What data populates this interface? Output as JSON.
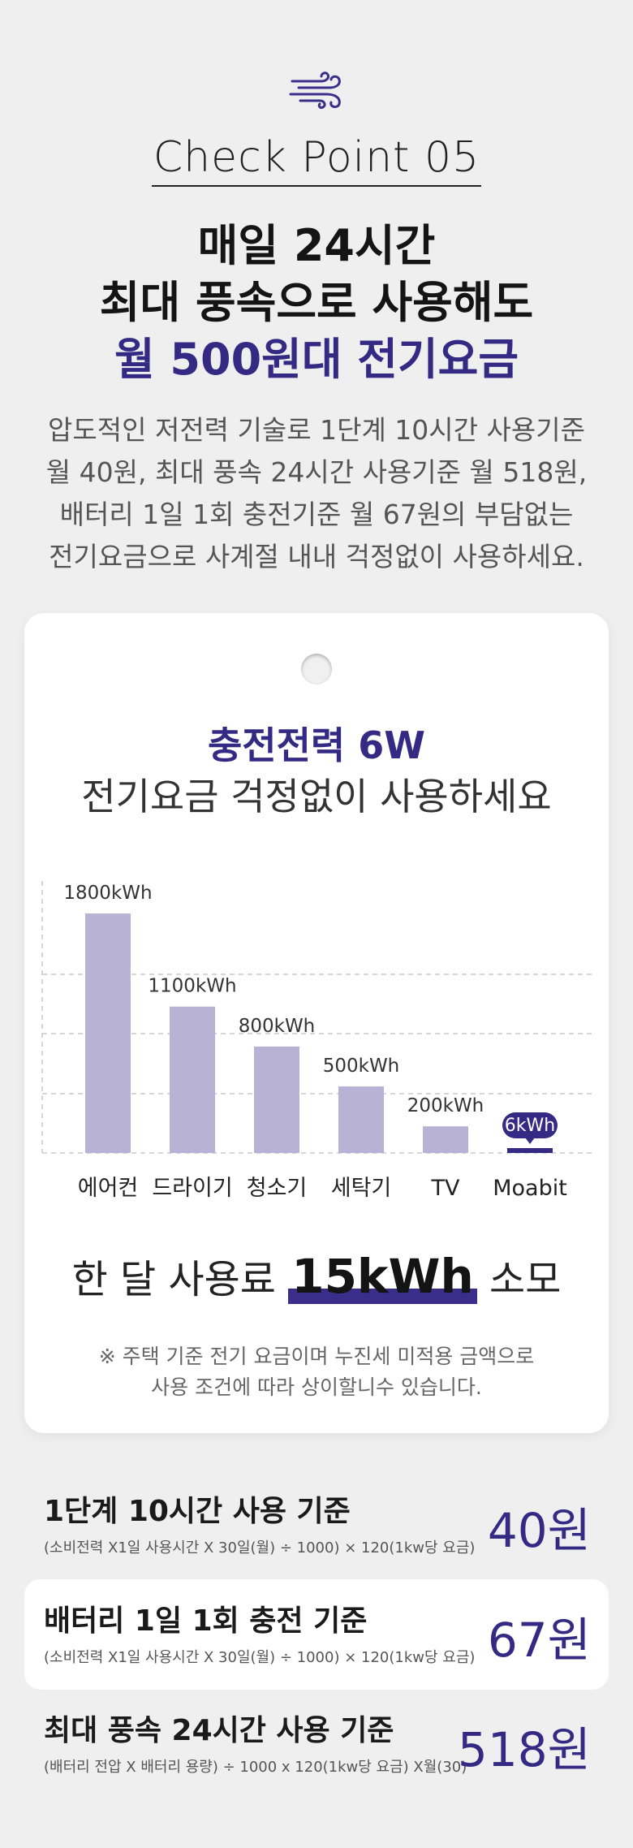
{
  "header": {
    "icon": "wind-icon",
    "checkpoint": "Check Point 05",
    "headline": [
      "매일 24시간",
      "최대 풍속으로 사용해도",
      "월 500원대 전기요금"
    ],
    "description": [
      "압도적인 저전력 기술로 1단계 10시간 사용기준",
      "월 40원, 최대 풍속 24시간 사용기준 월 518원,",
      "배터리 1일 1회 충전기준 월 67원의 부담없는",
      "전기요금으로 사계절 내내 걱정없이 사용하세요."
    ]
  },
  "card": {
    "title": "충전전력 6W",
    "subtitle": "전기요금 걱정없이 사용하세요",
    "usage_prefix": "한 달 사용료",
    "usage_value": "15kWh",
    "usage_suffix": "소모",
    "notes": [
      "※ 주택 기준 전기 요금이며 누진세 미적용 금액으로",
      "사용 조건에 따라 상이할니수 있습니다."
    ]
  },
  "chart_data": {
    "type": "bar",
    "categories": [
      "에어컨",
      "드라이기",
      "청소기",
      "세탁기",
      "TV",
      "Moabit"
    ],
    "values": [
      1800,
      1100,
      800,
      500,
      200,
      6
    ],
    "value_labels": [
      "1800kWh",
      "1100kWh",
      "800kWh",
      "500kWh",
      "200kWh",
      "6kWh"
    ],
    "unit": "kWh",
    "ylim": [
      0,
      1800
    ],
    "grid": true,
    "colors": {
      "bar": "#b8b2d6",
      "highlight": "#342a84",
      "grid": "#c8c8c8"
    },
    "highlight_index": 5
  },
  "rows": [
    {
      "title": "1단계 10시간 사용 기준",
      "formula": "(소비전력 X1일 사용시간 X 30일(월) ÷ 1000) × 120(1kw당 요금)",
      "price": "40원"
    },
    {
      "title": "배터리 1일 1회 충전 기준",
      "formula": "(소비전력 X1일 사용시간 X 30일(월) ÷ 1000) × 120(1kw당 요금)",
      "price": "67원"
    },
    {
      "title": "최대 풍속 24시간 사용 기준",
      "formula": "(배터리 전압 X 배터리 용량) ÷ 1000 x 120(1kw당 요금) X월(30)",
      "price": "518원"
    }
  ]
}
